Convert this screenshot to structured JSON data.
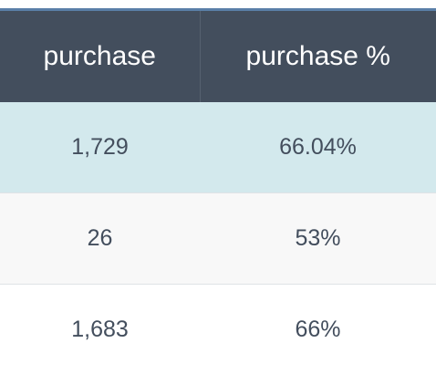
{
  "table": {
    "columns": [
      "purchase",
      "purchase %"
    ],
    "rows": [
      [
        "1,729",
        "66.04%"
      ],
      [
        "26",
        "53%"
      ],
      [
        "1,683",
        "66%"
      ]
    ]
  },
  "colors": {
    "header_bg": "#434e5d",
    "header_text": "#ffffff",
    "accent_border": "#5a7fa8",
    "highlight_row": "#d3e9ed",
    "alt_row": "#f8f8f8",
    "cell_text": "#434e5d"
  }
}
